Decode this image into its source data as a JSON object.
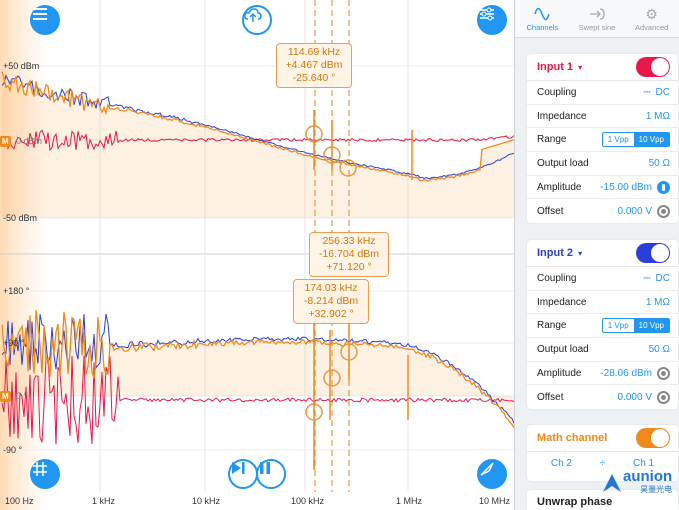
{
  "plot": {
    "mag_ticks": [
      "+50 dBm",
      "0 dBm",
      "-50 dBm"
    ],
    "phase_ticks": [
      "+180 °",
      "+90 °",
      "0 °",
      "-90 °"
    ],
    "freq_ticks": [
      "100 Hz",
      "1 kHz",
      "10 kHz",
      "100 kHz",
      "1 MHz",
      "10 MHz"
    ],
    "marker_label": "M",
    "readouts": [
      {
        "freq": "114.69 kHz",
        "mag": "+4.467 dBm",
        "phase": "-25.640 °"
      },
      {
        "freq": "256.33 kHz",
        "mag": "-16.704 dBm",
        "phase": "+71.120 °"
      },
      {
        "freq": "174.03 kHz",
        "mag": "-8.214 dBm",
        "phase": "+32.902 °"
      }
    ],
    "colors": {
      "channel1": "#e8184a",
      "channel2": "#2a3fd8",
      "math": "#f08a1c",
      "accent": "#2196f3"
    }
  },
  "buttons": {
    "menu_icon": "menu-icon",
    "upload_icon": "cloud-upload-icon",
    "settings_icon": "sliders-icon",
    "grid_icon": "grid-icon",
    "step_icon": "play-step-icon",
    "pause_icon": "pause-icon",
    "fit_icon": "fit-icon"
  },
  "tabs": [
    {
      "label": "Channels",
      "icon": "sine-wave-icon",
      "active": true
    },
    {
      "label": "Swept sine",
      "icon": "swept-sine-icon",
      "active": false
    },
    {
      "label": "Advanced",
      "icon": "gear-icon",
      "active": false
    }
  ],
  "input1": {
    "title": "Input 1",
    "caret": "▾",
    "coupling_label": "Coupling",
    "coupling_value": "DC",
    "impedance_label": "Impedance",
    "impedance_value": "1 MΩ",
    "range_label": "Range",
    "range_options": [
      "1 Vpp",
      "10 Vpp"
    ],
    "range_selected": "10 Vpp",
    "output_load_label": "Output load",
    "output_load_value": "50 Ω",
    "amplitude_label": "Amplitude",
    "amplitude_value": "-15.00",
    "amplitude_unit": "dBm",
    "offset_label": "Offset",
    "offset_value": "0.000",
    "offset_unit": "V",
    "enabled": true
  },
  "input2": {
    "title": "Input 2",
    "caret": "▾",
    "coupling_label": "Coupling",
    "coupling_value": "DC",
    "impedance_label": "Impedance",
    "impedance_value": "1 MΩ",
    "range_label": "Range",
    "range_options": [
      "1 Vpp",
      "10 Vpp"
    ],
    "range_selected": "10 Vpp",
    "output_load_label": "Output load",
    "output_load_value": "50 Ω",
    "amplitude_label": "Amplitude",
    "amplitude_value": "-28.06",
    "amplitude_unit": "dBm",
    "offset_label": "Offset",
    "offset_value": "0.000",
    "offset_unit": "V",
    "enabled": true
  },
  "math": {
    "title": "Math channel",
    "operand1": "Ch 2",
    "operator": "÷",
    "operand2": "Ch 1",
    "enabled": true
  },
  "unwrap": {
    "label": "Unwrap phase"
  },
  "watermark": {
    "name": "aunion",
    "sub": "昊量光电"
  }
}
